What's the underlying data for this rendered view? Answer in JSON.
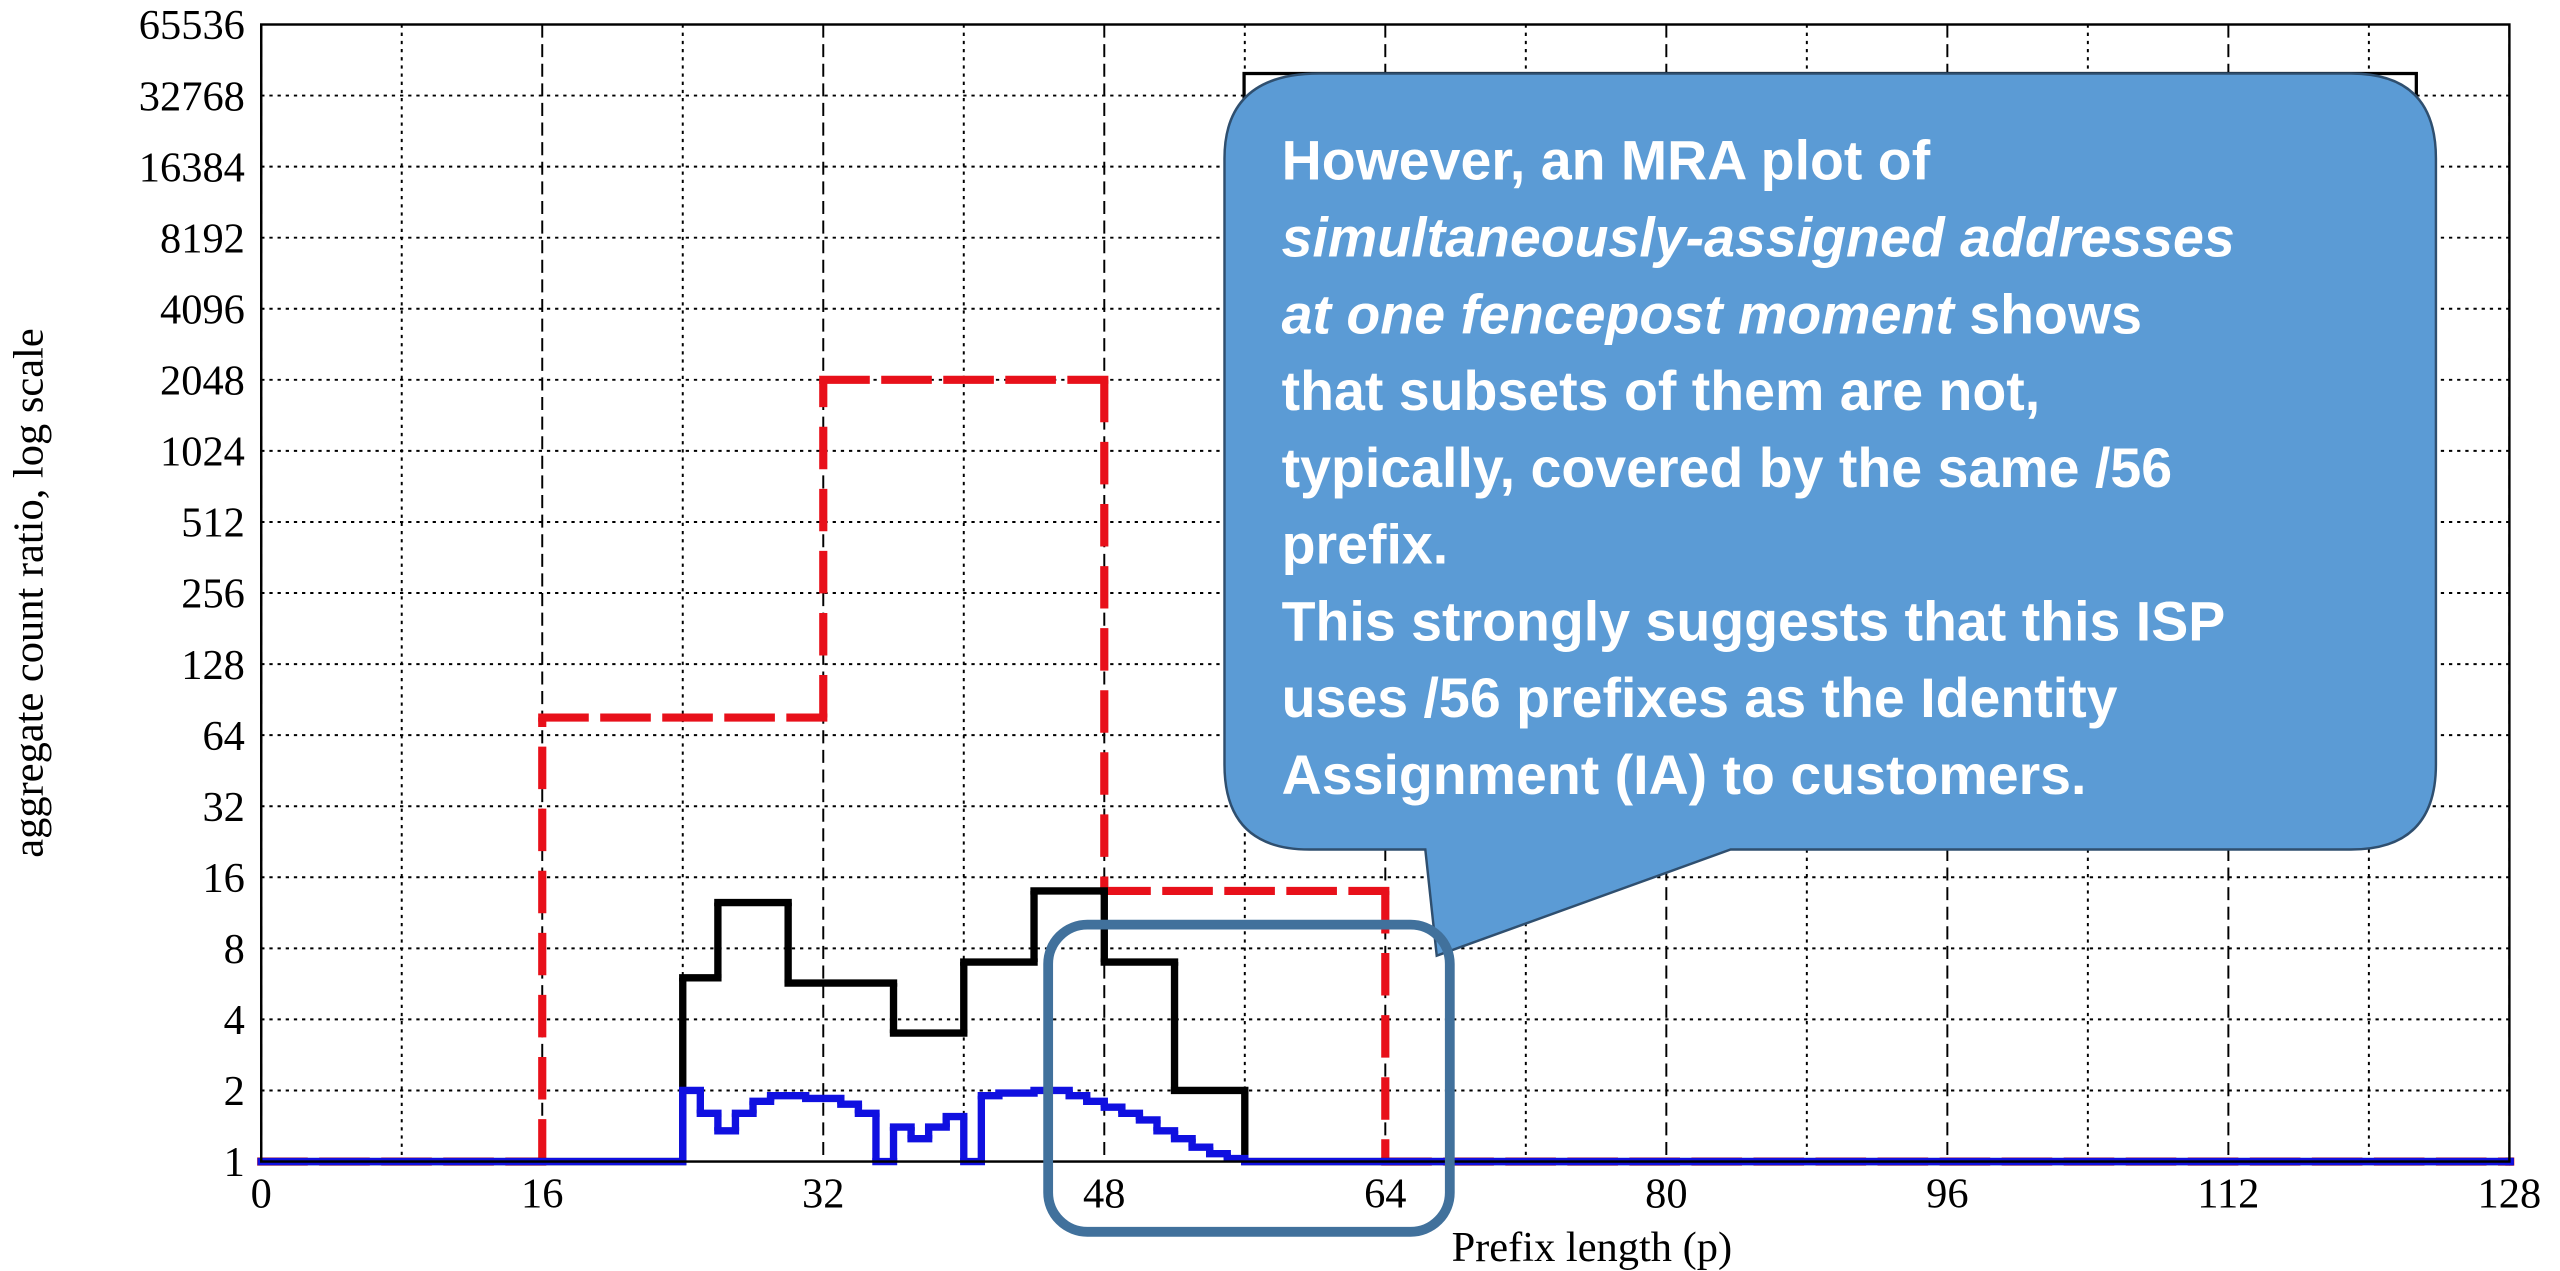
{
  "chart_data": {
    "type": "step",
    "xlabel": "Prefix length (p)",
    "ylabel": "aggregate count ratio, log scale",
    "xlim": [
      0,
      128
    ],
    "xticks": [
      0,
      16,
      32,
      48,
      64,
      80,
      96,
      112,
      128
    ],
    "xminor_ticks": [
      8,
      24,
      40,
      56,
      72,
      88,
      104,
      120
    ],
    "ylim": [
      1,
      65536
    ],
    "yticks": [
      1,
      2,
      4,
      8,
      16,
      32,
      64,
      128,
      256,
      512,
      1024,
      2048,
      4096,
      8192,
      16384,
      32768,
      65536
    ],
    "log_scale": "y",
    "grid": true,
    "series": [
      {
        "color": "#e8101a",
        "dashed": true,
        "x": [
          0,
          16,
          32,
          48,
          64,
          128
        ],
        "values": [
          1,
          76,
          2048,
          14,
          1,
          1
        ]
      },
      {
        "color": "#000000",
        "x": [
          0,
          24,
          26,
          30,
          36,
          40,
          44,
          48,
          52,
          56,
          128
        ],
        "values": [
          1,
          6,
          12.5,
          5.7,
          3.5,
          7,
          14,
          7,
          2,
          1,
          1
        ]
      },
      {
        "color": "#1010e0",
        "x": [
          0,
          24,
          25,
          26,
          27,
          28,
          29,
          31,
          33,
          34,
          35,
          36,
          37,
          38,
          39,
          40,
          41,
          42,
          44,
          46,
          47,
          48,
          49,
          50,
          51,
          52,
          53,
          54,
          55,
          56,
          128
        ],
        "values": [
          1,
          2,
          1.6,
          1.35,
          1.6,
          1.8,
          1.9,
          1.85,
          1.75,
          1.6,
          1,
          1.4,
          1.25,
          1.4,
          1.55,
          1,
          1.9,
          1.95,
          2,
          1.9,
          1.8,
          1.7,
          1.6,
          1.5,
          1.35,
          1.25,
          1.15,
          1.08,
          1.03,
          1,
          1
        ]
      }
    ]
  },
  "callout": {
    "lines": [
      [
        {
          "text": "However, an MRA plot of"
        }
      ],
      [
        {
          "text": "simultaneously-assigned addresses",
          "italic": true
        }
      ],
      [
        {
          "text": "at one fencepost moment",
          "italic": true
        },
        {
          "text": " shows"
        }
      ],
      [
        {
          "text": "that subsets of them are not,"
        }
      ],
      [
        {
          "text": "typically, covered by the same /56"
        }
      ],
      [
        {
          "text": "prefix."
        }
      ],
      [
        {
          "text": "This strongly suggests that this ISP"
        }
      ],
      [
        {
          "text": "uses /56 prefixes as the Identity"
        }
      ],
      [
        {
          "text": "Assignment (IA) to customers."
        }
      ]
    ]
  }
}
